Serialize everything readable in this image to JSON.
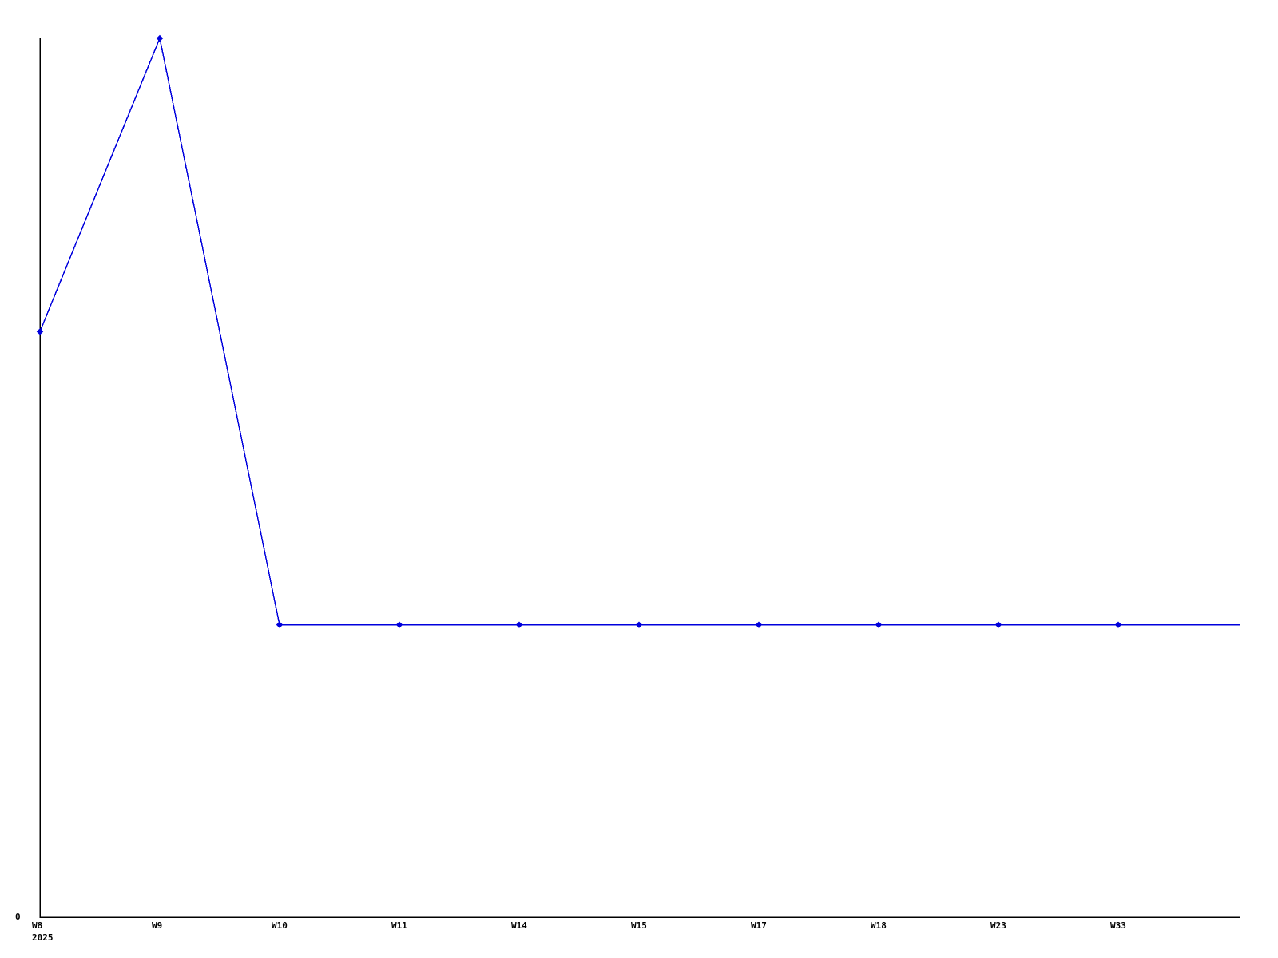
{
  "chart_data": {
    "type": "line",
    "title": "",
    "xlabel": "",
    "ylabel": "",
    "categories": [
      "W8",
      "W9",
      "W10",
      "W11",
      "W14",
      "W15",
      "W17",
      "W18",
      "W23",
      "W33"
    ],
    "values": [
      2,
      3,
      1,
      1,
      1,
      1,
      1,
      1,
      1,
      1
    ],
    "series": [
      {
        "name": "weekly-count",
        "values": [
          2,
          3,
          1,
          1,
          1,
          1,
          1,
          1,
          1,
          1
        ]
      }
    ],
    "x_year_label": "2025",
    "y_origin_label": "0",
    "ylim": [
      0,
      3
    ],
    "grid": false,
    "legend_position": "none",
    "marker": "diamond",
    "line_extends_to_right_edge": true,
    "colors": {
      "line": "#0000dd",
      "axis": "#000000",
      "text": "#000000",
      "background": "#ffffff"
    }
  }
}
